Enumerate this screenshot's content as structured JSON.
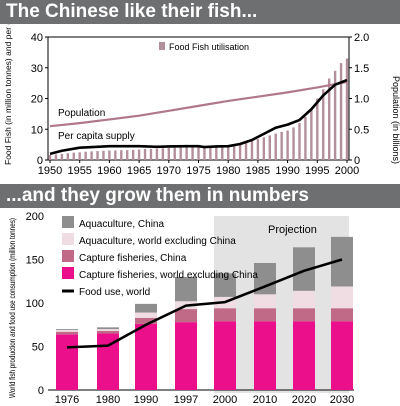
{
  "colors": {
    "banner": "#6e6f71",
    "fish_utilisation": "#b38f9c",
    "population": "#b07888",
    "per_capita": "#000000",
    "aquaculture_china": "#8e8e8e",
    "aquaculture_world_ex_china": "#f0dde4",
    "capture_china": "#c06a88",
    "capture_world_ex_china": "#ec0f8c",
    "food_use_world": "#000000",
    "projection_shade": "#e3e3e3"
  },
  "chart_data": [
    {
      "type": "bar",
      "title": "The Chinese like their fish...",
      "ylabel_left": "Food Fish  (in million tonnes) and per capita supply (kgs )",
      "ylabel_right": "Population  (in billions)",
      "ylim_left": [
        0,
        40
      ],
      "ylim_right": [
        0,
        2.0
      ],
      "left_ticks": [
        "0",
        "10",
        "20",
        "30",
        "40"
      ],
      "right_ticks": [
        "0",
        "0.5",
        "1.0",
        "1.5",
        "2.0"
      ],
      "x_ticks": [
        "1950",
        "1955",
        "1960",
        "1965",
        "1970",
        "1975",
        "1980",
        "1985",
        "1990",
        "1995",
        "2000"
      ],
      "legend": "Food Fish utilisation",
      "annotations": [
        "Population",
        "Per capita supply"
      ],
      "series": [
        {
          "name": "Food Fish utilisation",
          "type": "bar",
          "axis": "left",
          "x": [
            1950,
            1951,
            1952,
            1953,
            1954,
            1955,
            1956,
            1957,
            1958,
            1959,
            1960,
            1961,
            1962,
            1963,
            1964,
            1965,
            1966,
            1967,
            1968,
            1969,
            1970,
            1971,
            1972,
            1973,
            1974,
            1975,
            1976,
            1977,
            1978,
            1979,
            1980,
            1981,
            1982,
            1983,
            1984,
            1985,
            1986,
            1987,
            1988,
            1989,
            1990,
            1991,
            1992,
            1993,
            1994,
            1995,
            1996,
            1997,
            1998,
            1999,
            2000
          ],
          "values": [
            1.6,
            1.8,
            2.0,
            2.2,
            2.4,
            2.5,
            2.7,
            2.8,
            2.9,
            3.0,
            3.1,
            3.1,
            3.2,
            3.2,
            3.3,
            3.4,
            3.6,
            3.6,
            3.7,
            3.8,
            3.9,
            4.0,
            4.1,
            4.2,
            4.3,
            4.3,
            4.5,
            4.6,
            4.7,
            4.8,
            4.8,
            5.0,
            5.3,
            5.7,
            6.2,
            6.8,
            7.4,
            8.0,
            8.6,
            9.1,
            9.6,
            10.6,
            12.0,
            14.0,
            16.5,
            20.0,
            23.0,
            26.5,
            29.0,
            31.5,
            33.0
          ]
        },
        {
          "name": "Population",
          "type": "line",
          "axis": "right",
          "x": [
            1950,
            1955,
            1960,
            1965,
            1970,
            1975,
            1980,
            1985,
            1990,
            1995,
            2000
          ],
          "values": [
            0.55,
            0.6,
            0.66,
            0.72,
            0.8,
            0.88,
            0.96,
            1.03,
            1.1,
            1.18,
            1.27
          ]
        },
        {
          "name": "Per capita supply",
          "type": "line",
          "axis": "left",
          "x": [
            1950,
            1952,
            1955,
            1958,
            1960,
            1962,
            1965,
            1968,
            1970,
            1973,
            1975,
            1976,
            1978,
            1980,
            1982,
            1984,
            1986,
            1988,
            1990,
            1992,
            1994,
            1996,
            1998,
            2000
          ],
          "values": [
            2.0,
            3.0,
            4.0,
            4.3,
            4.5,
            4.5,
            4.5,
            4.3,
            4.4,
            4.5,
            4.5,
            4.2,
            4.4,
            4.5,
            5.2,
            6.5,
            8.5,
            10.5,
            11.5,
            13.0,
            16.5,
            21.0,
            24.5,
            26.0
          ]
        }
      ]
    },
    {
      "type": "bar",
      "title": "...and they grow them in numbers",
      "ylabel": "World fish production and food use consumption (million tonnes)",
      "ylim": [
        0,
        200
      ],
      "y_ticks": [
        "0",
        "50",
        "100",
        "150",
        "200"
      ],
      "categories": [
        "1976",
        "1980",
        "1990",
        "1997",
        "2000",
        "2010",
        "2020",
        "2030"
      ],
      "projection_label": "Projection",
      "projection_from": "2000",
      "legend": [
        "Aquaculture, China",
        "Aquaculture, world excluding China",
        "Capture fisheries, China",
        "Capture fisheries, world excluding China",
        "Food use, world"
      ],
      "series": [
        {
          "name": "Capture fisheries, world excluding China",
          "type": "bar",
          "values": [
            64,
            65,
            76,
            78,
            79,
            79,
            79,
            79
          ]
        },
        {
          "name": "Capture fisheries, China",
          "type": "bar",
          "values": [
            3,
            3,
            7,
            15,
            15,
            15,
            15,
            15
          ]
        },
        {
          "name": "Aquaculture, world excluding China",
          "type": "bar",
          "values": [
            2,
            2,
            6,
            9,
            13,
            16,
            20,
            25
          ]
        },
        {
          "name": "Aquaculture, China",
          "type": "bar",
          "values": [
            1,
            2,
            10,
            28,
            27,
            36,
            50,
            57
          ]
        },
        {
          "name": "Food use, world",
          "type": "line",
          "values": [
            49,
            51,
            75,
            97,
            101,
            119,
            137,
            150
          ]
        }
      ]
    }
  ]
}
